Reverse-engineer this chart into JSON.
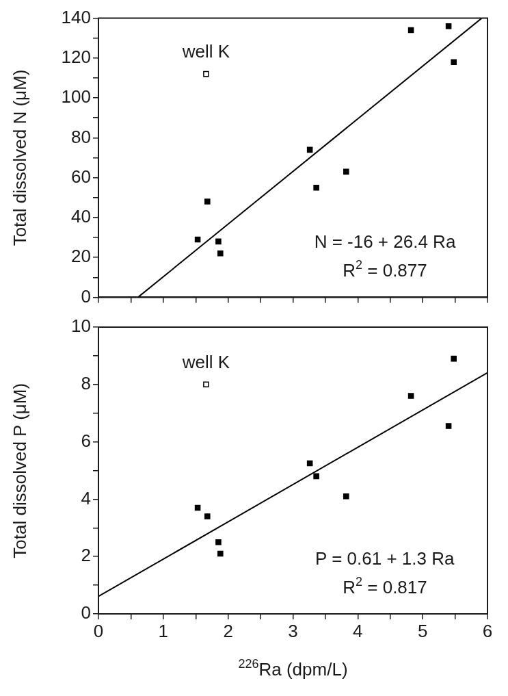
{
  "chart_data": [
    {
      "type": "scatter",
      "ylabel": "Total dissolved N (μM)",
      "xlim": [
        0,
        6
      ],
      "xticks": [
        0,
        {
          "value": 0.5,
          "label": null
        },
        1,
        {
          "value": 1.5,
          "label": null
        },
        2,
        {
          "value": 2.5,
          "label": null
        },
        3,
        {
          "value": 3.5,
          "label": null
        },
        4,
        {
          "value": 4.5,
          "label": null
        },
        5,
        {
          "value": 5.5,
          "label": null
        },
        6
      ],
      "ylim": [
        0,
        140
      ],
      "yticks": [
        0,
        {
          "value": 10,
          "label": null
        },
        20,
        {
          "value": 30,
          "label": null
        },
        40,
        {
          "value": 50,
          "label": null
        },
        60,
        {
          "value": 70,
          "label": null
        },
        80,
        {
          "value": 90,
          "label": null
        },
        100,
        {
          "value": 110,
          "label": null
        },
        120,
        {
          "value": 130,
          "label": null
        },
        140
      ],
      "tick_labels": "y",
      "grid": false,
      "legend": false,
      "marker": "square",
      "series": [
        {
          "color": "#000000",
          "x": [
            1.53,
            1.68,
            1.85,
            1.88,
            3.26,
            3.36,
            3.82,
            4.82,
            5.4,
            5.48
          ],
          "values": [
            29,
            48,
            28,
            22,
            74,
            55,
            63,
            134,
            136,
            118
          ]
        },
        {
          "color": "#ffffff",
          "x": [
            1.66
          ],
          "values": [
            112
          ]
        },
        {
          "type": "line",
          "color": "#000000",
          "marker": "none",
          "x": [
            0.61,
            5.91
          ],
          "values": [
            0,
            140
          ]
        }
      ],
      "annotations": [
        {
          "text": "well K",
          "x": 1.66,
          "y": 112
        },
        "N = -16 + 26.4 Ra",
        "R$^{2}$ = 0.877"
      ]
    },
    {
      "type": "scatter",
      "ylabel": "Total dissolved P (μM)",
      "xlabel": "$^{226}$Ra (dpm/L)",
      "xlim": [
        0,
        6
      ],
      "xticks": [
        0,
        {
          "value": 0.5,
          "label": null
        },
        1,
        {
          "value": 1.5,
          "label": null
        },
        2,
        {
          "value": 2.5,
          "label": null
        },
        3,
        {
          "value": 3.5,
          "label": null
        },
        4,
        {
          "value": 4.5,
          "label": null
        },
        5,
        {
          "value": 5.5,
          "label": null
        },
        6
      ],
      "ylim": [
        0,
        10
      ],
      "yticks": [
        0,
        {
          "value": 1,
          "label": null
        },
        2,
        {
          "value": 3,
          "label": null
        },
        4,
        {
          "value": 5,
          "label": null
        },
        6,
        {
          "value": 7,
          "label": null
        },
        8,
        {
          "value": 9,
          "label": null
        },
        10
      ],
      "grid": false,
      "legend": false,
      "marker": "square",
      "series": [
        {
          "color": "#000000",
          "x": [
            1.53,
            1.68,
            1.85,
            1.88,
            3.26,
            3.36,
            3.82,
            4.82,
            5.4,
            5.48
          ],
          "values": [
            3.7,
            3.4,
            2.5,
            2.1,
            5.25,
            4.8,
            4.1,
            7.6,
            6.55,
            8.9
          ]
        },
        {
          "color": "#ffffff",
          "x": [
            1.66
          ],
          "values": [
            8.0
          ]
        },
        {
          "type": "line",
          "color": "#000000",
          "marker": "none",
          "x": [
            0,
            6
          ],
          "values": [
            0.61,
            8.41
          ]
        }
      ],
      "annotations": [
        {
          "text": "well K",
          "x": 1.66,
          "y": 8.0
        },
        "P = 0.61 + 1.3 Ra",
        "R$^{2}$ = 0.817"
      ]
    }
  ]
}
